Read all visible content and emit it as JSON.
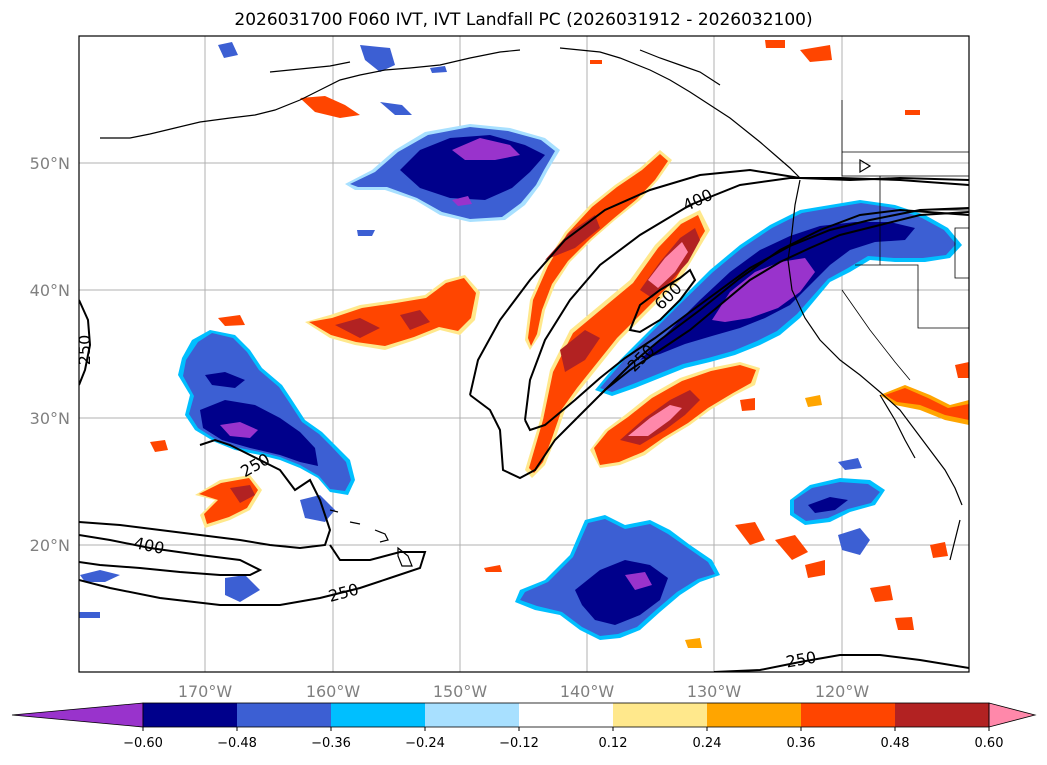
{
  "title": "2026031700 F060 IVT, IVT Landfall PC (2026031912 - 2026032100)",
  "chart_data": {
    "type": "map-contourf",
    "title": "2026031700 F060 IVT, IVT Landfall PC (2026031912 - 2026032100)",
    "lon_range": [
      -180,
      -110
    ],
    "lat_range": [
      10,
      60
    ],
    "lat_ticks": [
      {
        "value": 20,
        "label": "20°N"
      },
      {
        "value": 30,
        "label": "30°N"
      },
      {
        "value": 40,
        "label": "40°N"
      },
      {
        "value": 50,
        "label": "50°N"
      }
    ],
    "lon_ticks": [
      {
        "value": -170,
        "label": "170°W"
      },
      {
        "value": -160,
        "label": "160°W"
      },
      {
        "value": -150,
        "label": "150°W"
      },
      {
        "value": -140,
        "label": "140°W"
      },
      {
        "value": -130,
        "label": "130°W"
      },
      {
        "value": -120,
        "label": "120°W"
      }
    ],
    "grid": true,
    "colorbar": {
      "orientation": "horizontal",
      "extend": "both",
      "colors": [
        "#9933cc",
        "#00008b",
        "#3c5fd3",
        "#00bfff",
        "#a8e0ff",
        "#ffffff",
        "#ffe88c",
        "#ffa500",
        "#ff4500",
        "#b22222",
        "#ff88aa"
      ],
      "tick_labels": [
        "−0.60",
        "−0.48",
        "−0.36",
        "−0.24",
        "−0.12",
        "0.12",
        "0.24",
        "0.36",
        "0.48",
        "0.60"
      ]
    },
    "contour_labels": [
      "400",
      "600",
      "250",
      "250",
      "250",
      "400",
      "250",
      "250"
    ]
  }
}
